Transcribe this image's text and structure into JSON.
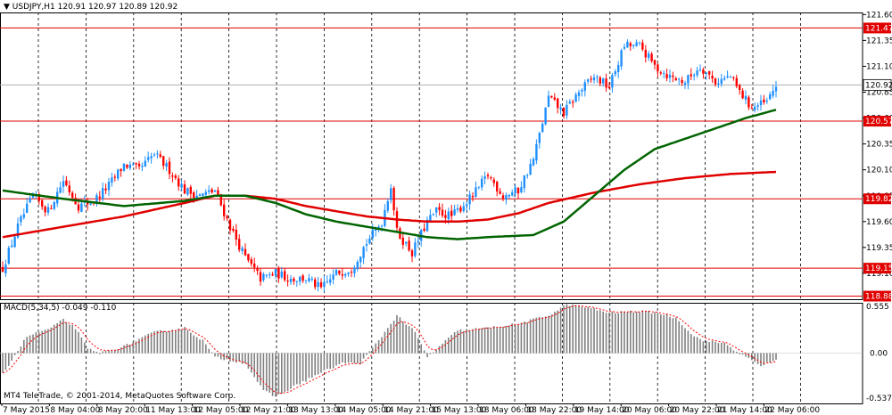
{
  "header": {
    "symbol_line": "USDJPY,H1  120.91 120.97 120.89 120.92",
    "macd_line": "MACD(5,34,5) -0.049 -0.110",
    "copyright": "MT4 TeleTrade, © 2001-2014, MetaQuotes Software Corp."
  },
  "colors": {
    "bull": "#1E90FF",
    "bear": "#FF0000",
    "ma_fast": "#006400",
    "ma_slow": "#E00000",
    "level": "#E00000",
    "hist": "#808080",
    "signal": "#FF0000"
  },
  "chart_data": [
    {
      "type": "candlestick",
      "symbol": "USDJPY",
      "timeframe": "H1",
      "ylim": [
        118.85,
        121.62
      ],
      "price_ticks": [
        "121.60",
        "121.35",
        "121.10",
        "120.85",
        "120.60",
        "120.35",
        "120.10",
        "119.85",
        "119.60",
        "119.35",
        "119.10"
      ],
      "levels": [
        {
          "value": 121.47,
          "label": "121.47"
        },
        {
          "value": 120.57,
          "label": "120.57"
        },
        {
          "value": 119.82,
          "label": "119.82"
        },
        {
          "value": 119.15,
          "label": "119.15"
        },
        {
          "value": 118.88,
          "label": "118.88"
        }
      ],
      "current_price": {
        "value": 120.92,
        "label": "120.92"
      },
      "x_labels": [
        "7 May 2015",
        "8 May 04:00",
        "8 May 20:00",
        "11 May 13:00",
        "12 May 05:00",
        "12 May 21:00",
        "13 May 13:00",
        "14 May 05:00",
        "14 May 21:00",
        "15 May 13:00",
        "18 May 06:00",
        "18 May 22:00",
        "19 May 14:00",
        "20 May 06:00",
        "20 May 22:00",
        "21 May 14:00",
        "22 May 06:00"
      ],
      "close_path": [
        [
          0,
          119.15
        ],
        [
          5,
          119.55
        ],
        [
          10,
          119.85
        ],
        [
          15,
          119.7
        ],
        [
          20,
          120.0
        ],
        [
          25,
          119.75
        ],
        [
          30,
          119.8
        ],
        [
          35,
          119.95
        ],
        [
          40,
          120.15
        ],
        [
          45,
          120.1
        ],
        [
          50,
          120.25
        ],
        [
          55,
          120.1
        ],
        [
          60,
          119.9
        ],
        [
          65,
          119.85
        ],
        [
          70,
          119.9
        ],
        [
          75,
          119.55
        ],
        [
          80,
          119.25
        ],
        [
          85,
          119.05
        ],
        [
          90,
          119.1
        ],
        [
          95,
          119.05
        ],
        [
          100,
          119.05
        ],
        [
          105,
          118.95
        ],
        [
          110,
          119.1
        ],
        [
          115,
          119.15
        ],
        [
          120,
          119.4
        ],
        [
          125,
          119.6
        ],
        [
          128,
          119.95
        ],
        [
          130,
          119.5
        ],
        [
          135,
          119.3
        ],
        [
          140,
          119.6
        ],
        [
          143,
          119.7
        ],
        [
          148,
          119.65
        ],
        [
          155,
          119.85
        ],
        [
          160,
          120.05
        ],
        [
          165,
          119.85
        ],
        [
          170,
          119.9
        ],
        [
          175,
          120.2
        ],
        [
          180,
          120.8
        ],
        [
          185,
          120.65
        ],
        [
          190,
          120.85
        ],
        [
          195,
          121.0
        ],
        [
          200,
          120.9
        ],
        [
          205,
          121.3
        ],
        [
          210,
          121.3
        ],
        [
          215,
          121.1
        ],
        [
          220,
          121.0
        ],
        [
          225,
          120.95
        ],
        [
          230,
          121.1
        ],
        [
          235,
          120.95
        ],
        [
          240,
          121.0
        ],
        [
          243,
          120.85
        ],
        [
          247,
          120.7
        ],
        [
          252,
          120.75
        ],
        [
          255,
          120.92
        ]
      ],
      "ma_fast": [
        [
          0,
          119.9
        ],
        [
          20,
          119.82
        ],
        [
          40,
          119.75
        ],
        [
          60,
          119.8
        ],
        [
          70,
          119.85
        ],
        [
          80,
          119.85
        ],
        [
          90,
          119.78
        ],
        [
          100,
          119.67
        ],
        [
          110,
          119.6
        ],
        [
          120,
          119.55
        ],
        [
          130,
          119.5
        ],
        [
          140,
          119.45
        ],
        [
          150,
          119.43
        ],
        [
          160,
          119.45
        ],
        [
          175,
          119.47
        ],
        [
          185,
          119.6
        ],
        [
          195,
          119.85
        ],
        [
          205,
          120.1
        ],
        [
          215,
          120.3
        ],
        [
          225,
          120.4
        ],
        [
          235,
          120.5
        ],
        [
          245,
          120.6
        ],
        [
          255,
          120.68
        ]
      ],
      "ma_slow": [
        [
          0,
          119.45
        ],
        [
          20,
          119.55
        ],
        [
          40,
          119.65
        ],
        [
          60,
          119.78
        ],
        [
          70,
          119.85
        ],
        [
          80,
          119.85
        ],
        [
          90,
          119.82
        ],
        [
          100,
          119.75
        ],
        [
          110,
          119.7
        ],
        [
          120,
          119.65
        ],
        [
          130,
          119.62
        ],
        [
          140,
          119.6
        ],
        [
          150,
          119.6
        ],
        [
          160,
          119.62
        ],
        [
          170,
          119.68
        ],
        [
          180,
          119.78
        ],
        [
          195,
          119.88
        ],
        [
          210,
          119.96
        ],
        [
          225,
          120.02
        ],
        [
          240,
          120.06
        ],
        [
          255,
          120.08
        ]
      ]
    },
    {
      "type": "histogram",
      "name": "MACD(5,34,5)",
      "ylim": [
        -0.6,
        0.6
      ],
      "y_ticks": [
        "0.555",
        "0.00",
        "-0.537"
      ],
      "macd_path": [
        [
          0,
          -0.25
        ],
        [
          8,
          0.2
        ],
        [
          16,
          0.3
        ],
        [
          20,
          0.4
        ],
        [
          24,
          0.3
        ],
        [
          28,
          0.05
        ],
        [
          32,
          0.0
        ],
        [
          40,
          0.08
        ],
        [
          50,
          0.25
        ],
        [
          60,
          0.3
        ],
        [
          66,
          0.15
        ],
        [
          70,
          -0.05
        ],
        [
          74,
          -0.08
        ],
        [
          80,
          -0.12
        ],
        [
          86,
          -0.45
        ],
        [
          90,
          -0.52
        ],
        [
          96,
          -0.4
        ],
        [
          104,
          -0.25
        ],
        [
          112,
          -0.12
        ],
        [
          118,
          -0.12
        ],
        [
          124,
          0.15
        ],
        [
          130,
          0.45
        ],
        [
          136,
          0.25
        ],
        [
          140,
          -0.05
        ],
        [
          144,
          0.08
        ],
        [
          150,
          0.27
        ],
        [
          160,
          0.3
        ],
        [
          170,
          0.35
        ],
        [
          180,
          0.45
        ],
        [
          186,
          0.58
        ],
        [
          192,
          0.55
        ],
        [
          200,
          0.48
        ],
        [
          210,
          0.5
        ],
        [
          216,
          0.48
        ],
        [
          222,
          0.42
        ],
        [
          228,
          0.2
        ],
        [
          232,
          0.14
        ],
        [
          238,
          0.12
        ],
        [
          244,
          -0.03
        ],
        [
          250,
          -0.15
        ],
        [
          255,
          -0.08
        ]
      ]
    }
  ]
}
